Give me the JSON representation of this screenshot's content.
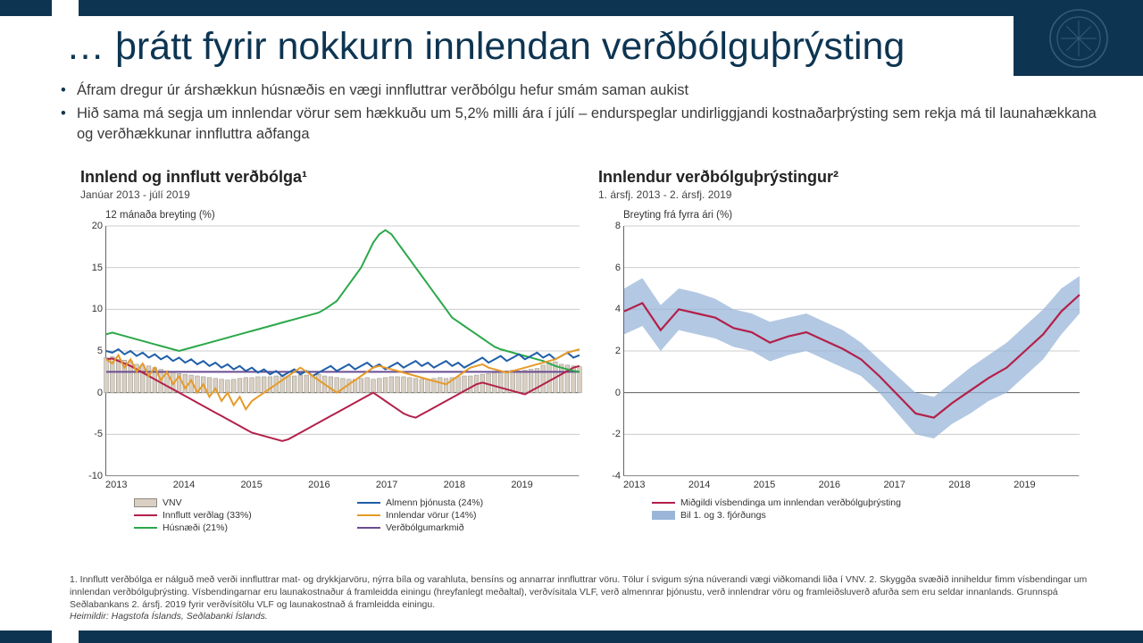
{
  "colors": {
    "brand": "#0d3552",
    "text": "#3a3a3a",
    "grid": "#cccccc",
    "bar_fill": "#d9d0c3",
    "bar_stroke": "#8f8a80",
    "red": "#b3204a",
    "green": "#2ba84a",
    "blue": "#1f5fa8",
    "orange": "#e69a28",
    "purple": "#6a4c93",
    "band": "#9ab5d8"
  },
  "title": "… þrátt fyrir nokkurn innlendan verðbólguþrýsting",
  "bullets": [
    "Áfram dregur úr árshækkun húsnæðis en vægi innfluttrar verðbólgu hefur smám saman aukist",
    "Hið sama má segja um innlendar vörur sem hækkuðu um 5,2% milli ára í júlí – endurspeglar undirliggjandi kostnaðarþrýsting sem rekja má til launahækkana og verðhækkunar innfluttra aðfanga"
  ],
  "chart1": {
    "title": "Innlend og innflutt verðbólga¹",
    "subtitle": "Janúar 2013 - júlí 2019",
    "yaxis_label": "12 mánaða breyting (%)",
    "x_years": [
      "2013",
      "2014",
      "2015",
      "2016",
      "2017",
      "2018",
      "2019"
    ],
    "ylim": [
      -10,
      20
    ],
    "ytick_step": 5,
    "bar_series_name": "VNV",
    "bars": [
      4.2,
      4.3,
      4.0,
      3.9,
      3.8,
      3.4,
      3.3,
      3.2,
      3.0,
      2.8,
      2.6,
      2.5,
      2.3,
      2.2,
      2.1,
      2.0,
      1.9,
      1.8,
      1.7,
      1.6,
      1.5,
      1.6,
      1.7,
      1.8,
      1.8,
      1.9,
      1.9,
      1.9,
      2.0,
      2.0,
      2.0,
      2.0,
      2.1,
      2.1,
      2.1,
      2.2,
      2.0,
      1.9,
      1.8,
      1.7,
      1.6,
      1.6,
      1.7,
      1.8,
      1.6,
      1.7,
      1.8,
      1.9,
      1.9,
      1.9,
      1.8,
      1.7,
      1.6,
      1.6,
      1.7,
      1.8,
      1.7,
      1.8,
      1.9,
      2.0,
      2.0,
      2.1,
      2.2,
      2.3,
      2.4,
      2.5,
      2.6,
      2.7,
      2.6,
      2.7,
      2.8,
      2.9,
      3.3,
      3.6,
      3.7,
      3.4,
      3.3,
      3.2,
      3.1
    ],
    "lines": {
      "target": {
        "name": "Verðbólgumarkmið",
        "color": "#6a4c93",
        "value": 2.5
      },
      "red": {
        "name": "Innflutt verðlag (33%)",
        "color": "#b3204a",
        "data": [
          4.0,
          4.1,
          3.8,
          3.5,
          3.2,
          2.8,
          2.4,
          2.0,
          1.6,
          1.2,
          0.8,
          0.4,
          0.0,
          -0.4,
          -0.8,
          -1.2,
          -1.6,
          -2.0,
          -2.4,
          -2.8,
          -3.2,
          -3.6,
          -4.0,
          -4.4,
          -4.8,
          -5.0,
          -5.2,
          -5.4,
          -5.6,
          -5.8,
          -5.6,
          -5.2,
          -4.8,
          -4.4,
          -4.0,
          -3.6,
          -3.2,
          -2.8,
          -2.4,
          -2.0,
          -1.6,
          -1.2,
          -0.8,
          -0.4,
          0.0,
          -0.5,
          -1.0,
          -1.5,
          -2.0,
          -2.5,
          -2.8,
          -3.0,
          -2.6,
          -2.2,
          -1.8,
          -1.4,
          -1.0,
          -0.6,
          -0.2,
          0.2,
          0.6,
          1.0,
          1.2,
          1.0,
          0.8,
          0.6,
          0.4,
          0.2,
          0.0,
          -0.2,
          0.2,
          0.6,
          1.0,
          1.4,
          1.8,
          2.2,
          2.6,
          3.0,
          3.2
        ]
      },
      "green": {
        "name": "Húsnæði (21%)",
        "color": "#2ba84a",
        "data": [
          7.0,
          7.2,
          7.0,
          6.8,
          6.6,
          6.4,
          6.2,
          6.0,
          5.8,
          5.6,
          5.4,
          5.2,
          5.0,
          5.2,
          5.4,
          5.6,
          5.8,
          6.0,
          6.2,
          6.4,
          6.6,
          6.8,
          7.0,
          7.2,
          7.4,
          7.6,
          7.8,
          8.0,
          8.2,
          8.4,
          8.6,
          8.8,
          9.0,
          9.2,
          9.4,
          9.6,
          10.0,
          10.5,
          11.0,
          12.0,
          13.0,
          14.0,
          15.0,
          16.5,
          18.0,
          19.0,
          19.5,
          19.0,
          18.0,
          17.0,
          16.0,
          15.0,
          14.0,
          13.0,
          12.0,
          11.0,
          10.0,
          9.0,
          8.5,
          8.0,
          7.5,
          7.0,
          6.5,
          6.0,
          5.5,
          5.2,
          5.0,
          4.8,
          4.6,
          4.4,
          4.2,
          4.0,
          3.8,
          3.5,
          3.2,
          3.0,
          2.8,
          2.6,
          2.5
        ]
      },
      "blue": {
        "name": "Almenn þjónusta (24%)",
        "color": "#1f5fa8",
        "data": [
          5.0,
          4.8,
          5.2,
          4.6,
          5.0,
          4.4,
          4.8,
          4.2,
          4.6,
          4.0,
          4.4,
          3.8,
          4.2,
          3.6,
          4.0,
          3.4,
          3.8,
          3.2,
          3.6,
          3.0,
          3.4,
          2.8,
          3.2,
          2.6,
          3.0,
          2.4,
          2.8,
          2.2,
          2.6,
          2.0,
          2.4,
          2.8,
          2.2,
          2.6,
          2.0,
          2.4,
          2.8,
          3.2,
          2.6,
          3.0,
          3.4,
          2.8,
          3.2,
          3.6,
          3.0,
          3.4,
          2.8,
          3.2,
          3.6,
          3.0,
          3.4,
          3.8,
          3.2,
          3.6,
          3.0,
          3.4,
          3.8,
          3.2,
          3.6,
          3.0,
          3.4,
          3.8,
          4.2,
          3.6,
          4.0,
          4.4,
          3.8,
          4.2,
          4.6,
          4.0,
          4.4,
          4.8,
          4.2,
          4.6,
          4.0,
          4.4,
          4.8,
          4.2,
          4.5
        ]
      },
      "orange": {
        "name": "Innlendar vörur (14%)",
        "color": "#e69a28",
        "data": [
          4.0,
          3.5,
          4.5,
          3.0,
          4.0,
          2.5,
          3.5,
          2.0,
          3.0,
          1.5,
          2.5,
          1.0,
          2.0,
          0.5,
          1.5,
          0.0,
          1.0,
          -0.5,
          0.5,
          -1.0,
          0.0,
          -1.5,
          -0.5,
          -2.0,
          -1.0,
          -0.5,
          0.0,
          0.5,
          1.0,
          1.5,
          2.0,
          2.5,
          3.0,
          2.5,
          2.0,
          1.5,
          1.0,
          0.5,
          0.0,
          0.5,
          1.0,
          1.5,
          2.0,
          2.5,
          3.0,
          3.2,
          3.0,
          2.8,
          2.6,
          2.4,
          2.2,
          2.0,
          1.8,
          1.6,
          1.4,
          1.2,
          1.0,
          1.5,
          2.0,
          2.5,
          3.0,
          3.2,
          3.4,
          3.0,
          2.8,
          2.6,
          2.4,
          2.6,
          2.8,
          3.0,
          3.2,
          3.4,
          3.6,
          3.8,
          4.0,
          4.4,
          4.8,
          5.0,
          5.2
        ]
      }
    },
    "legend_order": [
      [
        "bar",
        "VNV"
      ],
      [
        "blue",
        "Almenn þjónusta (24%)"
      ],
      [
        "red",
        "Innflutt verðlag (33%)"
      ],
      [
        "orange",
        "Innlendar vörur (14%)"
      ],
      [
        "green",
        "Húsnæði (21%)"
      ],
      [
        "purple",
        "Verðbólgumarkmið"
      ]
    ]
  },
  "chart2": {
    "title": "Innlendur verðbólguþrýstingur²",
    "subtitle": "1. ársfj. 2013 - 2. ársfj. 2019",
    "yaxis_label": "Breyting frá fyrra ári (%)",
    "x_years": [
      "2013",
      "2014",
      "2015",
      "2016",
      "2017",
      "2018",
      "2019"
    ],
    "ylim": [
      -4,
      8
    ],
    "ytick_step": 2,
    "band_low": [
      2.8,
      3.2,
      2.0,
      3.0,
      2.8,
      2.6,
      2.2,
      2.0,
      1.5,
      1.8,
      2.0,
      1.6,
      1.2,
      0.8,
      0.0,
      -1.0,
      -2.0,
      -2.2,
      -1.5,
      -1.0,
      -0.4,
      0.0,
      0.8,
      1.6,
      2.8,
      3.8
    ],
    "band_high": [
      5.0,
      5.5,
      4.2,
      5.0,
      4.8,
      4.5,
      4.0,
      3.8,
      3.4,
      3.6,
      3.8,
      3.4,
      3.0,
      2.4,
      1.6,
      0.8,
      0.0,
      -0.2,
      0.5,
      1.2,
      1.8,
      2.4,
      3.2,
      4.0,
      5.0,
      5.6
    ],
    "median": [
      3.9,
      4.3,
      3.0,
      4.0,
      3.8,
      3.6,
      3.1,
      2.9,
      2.4,
      2.7,
      2.9,
      2.5,
      2.1,
      1.6,
      0.8,
      -0.1,
      -1.0,
      -1.2,
      -0.5,
      0.1,
      0.7,
      1.2,
      2.0,
      2.8,
      3.9,
      4.7
    ],
    "legend": [
      {
        "type": "line",
        "color": "#b3204a",
        "label": "Miðgildi vísbendinga um innlendan verðbólguþrýsting"
      },
      {
        "type": "box",
        "color": "#9ab5d8",
        "label": "Bil 1. og 3. fjórðungs"
      }
    ]
  },
  "footnote": {
    "text": "1. Innflutt verðbólga er nálguð með verði innfluttrar mat- og drykkjarvöru, nýrra bíla og varahluta, bensíns og annarrar innfluttrar vöru. Tölur í svigum sýna núverandi vægi viðkomandi liða í VNV. 2. Skyggða svæðið inniheldur fimm vísbendingar um innlendan verðbólguþrýsting. Vísbendingarnar eru launakostnaður á framleidda einingu (hreyfanlegt meðaltal), verðvísitala VLF, verð almennrar þjónustu, verð innlendrar vöru og framleiðsluverð afurða sem eru seldar innanlands. Grunnspá Seðlabankans 2. ársfj. 2019 fyrir verðvísitölu VLF og launakostnað á framleidda einingu.",
    "source": "Heimildir: Hagstofa Íslands, Seðlabanki Íslands."
  }
}
